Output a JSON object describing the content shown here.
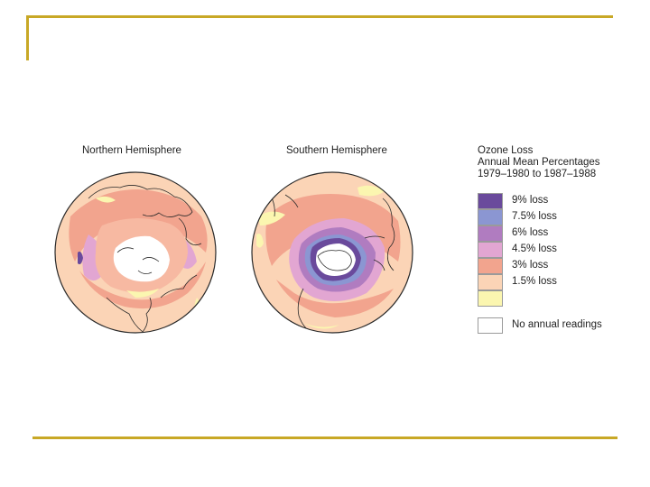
{
  "maps": {
    "north": {
      "title": "Northern Hemisphere"
    },
    "south": {
      "title": "Southern Hemisphere"
    }
  },
  "legend": {
    "title_lines": [
      "Ozone Loss",
      "Annual Mean Percentages",
      "1979–1980 to 1987–1988"
    ],
    "items": [
      {
        "label": "9% loss",
        "color": "#6a4a9c"
      },
      {
        "label": "7.5% loss",
        "color": "#8b96d2"
      },
      {
        "label": "6% loss",
        "color": "#b07cc0"
      },
      {
        "label": "4.5% loss",
        "color": "#e2a6d2"
      },
      {
        "label": "3% loss",
        "color": "#f2a48e"
      },
      {
        "label": "1.5% loss",
        "color": "#fbd4b6"
      },
      {
        "label": "",
        "color": "#fbf6b0"
      }
    ],
    "no_data": {
      "label": "No annual readings",
      "color": "#ffffff"
    }
  },
  "colors": {
    "frame": "#c8a826",
    "land_outline": "#2a2a2a"
  }
}
